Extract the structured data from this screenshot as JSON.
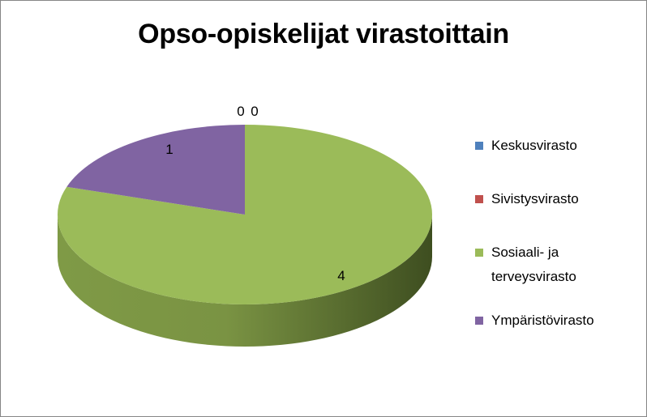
{
  "chart_data": {
    "type": "pie",
    "title": "Opso-opiskelijat virastoittain",
    "categories": [
      "Keskusvirasto",
      "Sivistysvirasto",
      "Sosiaali- ja terveysvirasto",
      "Ympäristövirasto"
    ],
    "values": [
      0,
      0,
      4,
      1
    ],
    "colors": [
      "#4f81bd",
      "#c0504d",
      "#9bbb59",
      "#8064a2"
    ],
    "legend_position": "right",
    "style": "3d"
  }
}
